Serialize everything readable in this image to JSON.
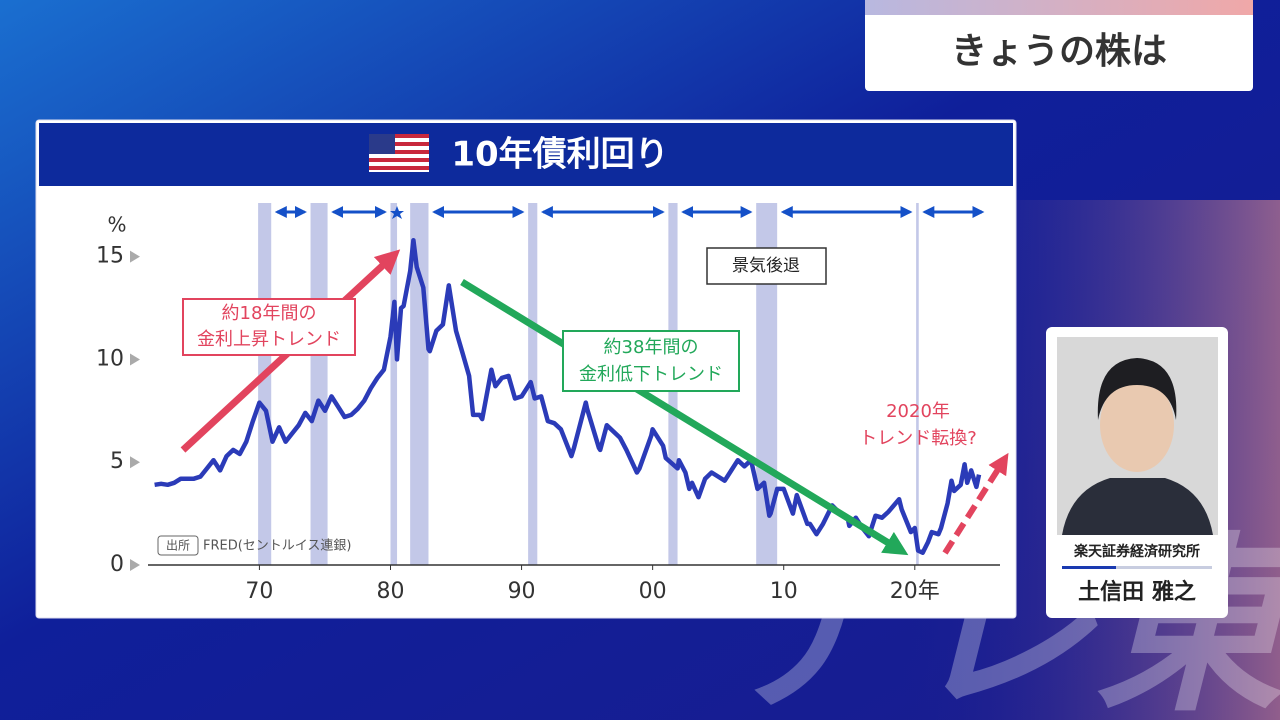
{
  "header": {
    "title": "きょうの株は"
  },
  "chart_data": {
    "type": "line",
    "title": "10年債利回り",
    "y_unit": "%",
    "color": "#2b3bb8",
    "x": [
      1962,
      1962.5,
      1963,
      1963.5,
      1964,
      1964.5,
      1965,
      1965.5,
      1966,
      1966.5,
      1967,
      1967.5,
      1968,
      1968.5,
      1969,
      1969.5,
      1970,
      1970.5,
      1971,
      1971.5,
      1972,
      1972.5,
      1973,
      1973.5,
      1974,
      1974.5,
      1975,
      1975.5,
      1976,
      1976.5,
      1977,
      1977.5,
      1978,
      1978.5,
      1979,
      1979.5,
      1980,
      1980.3,
      1980.5,
      1980.8,
      1981,
      1981.5,
      1981.75,
      1982,
      1982.5,
      1982.9,
      1983,
      1983.5,
      1984,
      1984.45,
      1985,
      1985.5,
      1986,
      1986.3,
      1986.8,
      1987,
      1987.7,
      1988,
      1988.5,
      1989,
      1989.5,
      1990,
      1990.7,
      1991,
      1991.5,
      1992,
      1992.5,
      1993,
      1993.8,
      1994,
      1994.9,
      1995,
      1995.9,
      1996,
      1996.5,
      1997,
      1997.5,
      1998,
      1998.8,
      1999,
      1999.9,
      2000,
      2000.8,
      2001,
      2001.9,
      2002,
      2002.5,
      2002.8,
      2003,
      2003.5,
      2004,
      2004.5,
      2005,
      2005.5,
      2006,
      2006.5,
      2007,
      2007.5,
      2008,
      2008.5,
      2008.9,
      2009,
      2009.5,
      2010,
      2010.7,
      2011,
      2011.8,
      2012,
      2012.5,
      2013,
      2013.7,
      2014,
      2014.9,
      2015,
      2015.5,
      2016,
      2016.5,
      2017,
      2017.5,
      2018,
      2018.8,
      2019,
      2019.7,
      2020,
      2020.25,
      2020.6,
      2021,
      2021.3,
      2021.8,
      2022,
      2022.5,
      2022.8,
      2023,
      2023.5,
      2023.8,
      2024,
      2024.3,
      2024.7,
      2024.9
    ],
    "values": [
      3.9,
      3.95,
      3.9,
      4.0,
      4.2,
      4.2,
      4.2,
      4.3,
      4.7,
      5.1,
      4.6,
      5.3,
      5.6,
      5.4,
      6.0,
      7.0,
      7.9,
      7.5,
      6.0,
      6.7,
      6.0,
      6.4,
      6.8,
      7.4,
      7.0,
      8.0,
      7.5,
      8.2,
      7.7,
      7.2,
      7.3,
      7.6,
      8.0,
      8.6,
      9.1,
      9.5,
      11.1,
      12.8,
      10.0,
      12.5,
      12.6,
      14.3,
      15.8,
      14.5,
      13.5,
      10.5,
      10.4,
      11.4,
      11.7,
      13.6,
      11.4,
      10.3,
      9.2,
      7.3,
      7.3,
      7.1,
      9.5,
      8.7,
      9.1,
      9.2,
      8.1,
      8.2,
      8.9,
      8.1,
      8.2,
      7.0,
      6.9,
      6.6,
      5.3,
      5.7,
      7.9,
      7.6,
      5.7,
      5.6,
      6.8,
      6.5,
      6.2,
      5.6,
      4.5,
      4.7,
      6.3,
      6.6,
      5.8,
      5.2,
      4.7,
      5.1,
      4.5,
      3.7,
      4.0,
      3.3,
      4.2,
      4.5,
      4.3,
      4.1,
      4.6,
      5.1,
      4.8,
      5.1,
      3.7,
      4.0,
      2.4,
      2.5,
      3.7,
      3.7,
      2.5,
      3.4,
      2.0,
      2.0,
      1.5,
      2.0,
      2.9,
      2.7,
      2.2,
      1.9,
      2.3,
      1.8,
      1.4,
      2.4,
      2.3,
      2.6,
      3.2,
      2.7,
      1.6,
      1.8,
      0.7,
      0.6,
      1.1,
      1.6,
      1.5,
      1.8,
      3.0,
      4.1,
      3.6,
      3.9,
      4.9,
      4.0,
      4.6,
      3.8,
      4.4
    ],
    "xlim": [
      1961.5,
      2026.5
    ],
    "ylim": [
      0,
      18
    ],
    "xticks": [
      {
        "value": 1970,
        "label": "70"
      },
      {
        "value": 1980,
        "label": "80"
      },
      {
        "value": 1990,
        "label": "90"
      },
      {
        "value": 2000,
        "label": "00"
      },
      {
        "value": 2010,
        "label": "10"
      },
      {
        "value": 2020,
        "label": "20年"
      }
    ],
    "yticks": [
      0,
      5,
      10,
      15
    ],
    "recessions": [
      [
        1969.9,
        1970.9
      ],
      [
        1973.9,
        1975.2
      ],
      [
        1980.0,
        1980.5
      ],
      [
        1981.5,
        1982.9
      ],
      [
        1990.5,
        1991.2
      ],
      [
        2001.2,
        2001.9
      ],
      [
        2007.9,
        2009.5
      ],
      [
        2020.1,
        2020.3
      ]
    ],
    "recession_color": "#c3c8e8",
    "legend": "景気後退",
    "source_label": "出所",
    "source": "FRED(セントルイス連銀)",
    "annotations": [
      {
        "lines": [
          "約18年間の",
          "金利上昇トレンド"
        ],
        "color": "#e2445e"
      },
      {
        "lines": [
          "約38年間の",
          "金利低下トレンド"
        ],
        "color": "#22a85a"
      },
      {
        "lines": [
          "2020年",
          "トレンド転換?"
        ],
        "color": "#e2445e"
      }
    ]
  },
  "speaker": {
    "affiliation": "楽天証券経済研究所",
    "name": "土信田 雅之"
  },
  "logo": "テレ東"
}
